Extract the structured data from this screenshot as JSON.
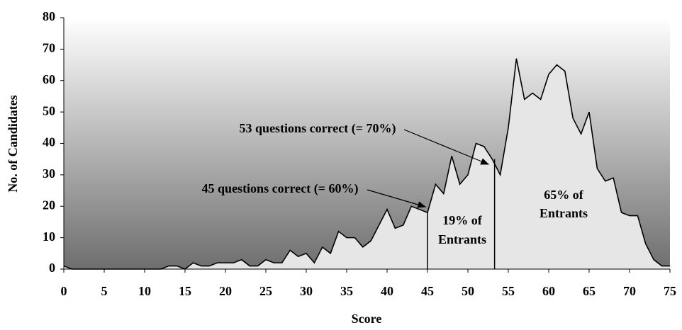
{
  "chart_data": {
    "type": "area",
    "x": [
      0,
      1,
      2,
      3,
      4,
      5,
      6,
      7,
      8,
      9,
      10,
      11,
      12,
      13,
      14,
      15,
      16,
      17,
      18,
      19,
      20,
      21,
      22,
      23,
      24,
      25,
      26,
      27,
      28,
      29,
      30,
      31,
      32,
      33,
      34,
      35,
      36,
      37,
      38,
      39,
      40,
      41,
      42,
      43,
      44,
      45,
      46,
      47,
      48,
      49,
      50,
      51,
      52,
      53,
      54,
      55,
      56,
      57,
      58,
      59,
      60,
      61,
      62,
      63,
      64,
      65,
      66,
      67,
      68,
      69,
      70,
      71,
      72,
      73,
      74,
      75
    ],
    "values": [
      1,
      0,
      0,
      0,
      0,
      0,
      0,
      0,
      0,
      0,
      0,
      0,
      0,
      1,
      1,
      0,
      2,
      1,
      1,
      2,
      2,
      2,
      3,
      1,
      1,
      3,
      2,
      2,
      6,
      4,
      5,
      2,
      7,
      5,
      12,
      10,
      10,
      7,
      9,
      14,
      19,
      13,
      14,
      20,
      19,
      18,
      27,
      24,
      36,
      27,
      30,
      40,
      39,
      35,
      30,
      45,
      67,
      54,
      56,
      54,
      62,
      65,
      63,
      48,
      43,
      50,
      32,
      28,
      29,
      18,
      17,
      17,
      8,
      3,
      1,
      1
    ],
    "color": "#e6e6e6",
    "xlabel": "Score",
    "ylabel": "No. of Candidates",
    "xlim": [
      0,
      75
    ],
    "xticks": [
      0,
      5,
      10,
      15,
      20,
      25,
      30,
      35,
      40,
      45,
      50,
      55,
      60,
      65,
      70,
      75
    ],
    "ylim": [
      0,
      80
    ],
    "yticks": [
      0,
      10,
      20,
      30,
      40,
      50,
      60,
      70,
      80
    ],
    "reference_lines": [
      45,
      53.3
    ],
    "annotations": [
      "53 questions correct (= 70%)",
      "45 questions correct (= 60%)"
    ],
    "region_labels": [
      [
        "19% of",
        "Entrants"
      ],
      [
        "65% of",
        "Entrants"
      ]
    ]
  }
}
